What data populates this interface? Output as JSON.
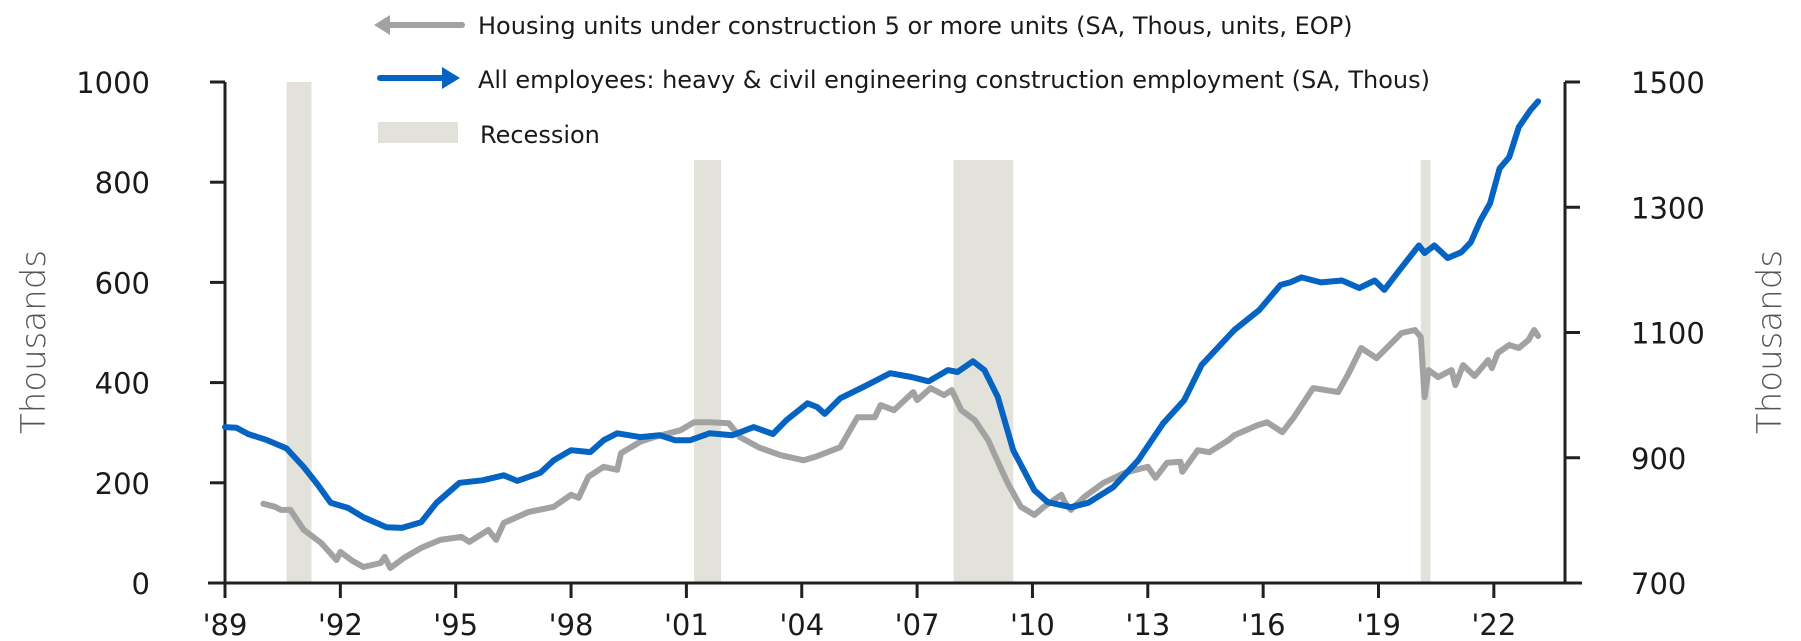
{
  "chart_data": {
    "type": "line",
    "title": "",
    "xlabel": "",
    "ylabel": "Thousands",
    "ylabel_right": "Thousands",
    "xlim": [
      1989,
      2024.2
    ],
    "ylim": [
      0,
      1000
    ],
    "ylim_right": [
      700,
      1500
    ],
    "x_ticks": [
      1989,
      1992,
      1995,
      1998,
      2001,
      2004,
      2007,
      2010,
      2013,
      2016,
      2019,
      2022
    ],
    "x_tick_labels": [
      "'89",
      "'92",
      "'95",
      "'98",
      "'01",
      "'04",
      "'07",
      "'10",
      "'13",
      "'16",
      "'19",
      "'22"
    ],
    "y_ticks": [
      0,
      200,
      400,
      600,
      800,
      1000
    ],
    "y_tick_labels": [
      "0",
      "200",
      "400",
      "600",
      "800",
      "1000"
    ],
    "y_ticks_right": [
      700,
      900,
      1100,
      1300,
      1500
    ],
    "y_tick_labels_right": [
      "700",
      "900",
      "1100",
      "1300",
      "1500"
    ],
    "grid": false,
    "legend_position": "top",
    "legend": [
      {
        "label": "Housing units under construction 5 or more units (SA, Thous, units, EOP)",
        "kind": "arrow-left",
        "color": "#A2A2A2"
      },
      {
        "label": "All employees: heavy & civil engineering construction employment (SA, Thous)",
        "kind": "arrow-right",
        "color": "#0563C1"
      },
      {
        "label": "Recession",
        "kind": "swatch",
        "color": "#E2E2DA"
      }
    ],
    "recessions": [
      {
        "start": 1990.6,
        "end": 1991.25
      },
      {
        "start": 2001.2,
        "end": 2001.9
      },
      {
        "start": 2007.95,
        "end": 2009.5
      },
      {
        "start": 2020.1,
        "end": 2020.35
      }
    ],
    "series": [
      {
        "name": "Housing units under construction 5 or more units (SA, Thous, units, EOP)",
        "axis": "left",
        "color": "#A2A2A2",
        "x": [
          1990.0,
          1990.3,
          1990.45,
          1990.7,
          1991.05,
          1991.5,
          1991.9,
          1992.0,
          1992.3,
          1992.6,
          1993.05,
          1993.15,
          1993.3,
          1993.65,
          1994.1,
          1994.6,
          1995.15,
          1995.35,
          1995.85,
          1996.05,
          1996.25,
          1996.9,
          1997.55,
          1998.0,
          1998.2,
          1998.45,
          1998.85,
          1999.2,
          1999.3,
          1999.8,
          2000.2,
          2000.85,
          2001.2,
          2001.6,
          2002.1,
          2002.4,
          2002.9,
          2003.45,
          2004.05,
          2004.4,
          2005.0,
          2005.45,
          2005.9,
          2006.05,
          2006.4,
          2006.9,
          2007.0,
          2007.35,
          2007.7,
          2007.9,
          2008.15,
          2008.5,
          2008.85,
          2009.0,
          2009.35,
          2009.7,
          2010.05,
          2010.3,
          2010.75,
          2010.85,
          2011.0,
          2011.35,
          2011.85,
          2012.4,
          2013.0,
          2013.2,
          2013.5,
          2013.85,
          2013.9,
          2014.3,
          2014.6,
          2015.1,
          2015.25,
          2015.85,
          2016.1,
          2016.5,
          2016.8,
          2017.3,
          2017.95,
          2018.2,
          2018.55,
          2018.95,
          2019.6,
          2019.95,
          2020.1,
          2020.2,
          2020.3,
          2020.55,
          2020.9,
          2021.0,
          2021.2,
          2021.5,
          2021.85,
          2021.95,
          2022.1,
          2022.4,
          2022.65,
          2022.9,
          2023.05,
          2023.15
        ],
        "values": [
          158,
          152,
          146,
          146,
          106,
          80,
          46,
          62,
          45,
          32,
          40,
          52,
          30,
          50,
          70,
          86,
          92,
          82,
          106,
          86,
          120,
          142,
          152,
          176,
          170,
          212,
          232,
          226,
          259,
          282,
          292,
          305,
          321,
          321,
          319,
          291,
          270,
          255,
          245,
          253,
          271,
          331,
          331,
          355,
          345,
          381,
          365,
          389,
          375,
          385,
          345,
          325,
          285,
          259,
          200,
          152,
          136,
          152,
          176,
          160,
          146,
          172,
          200,
          220,
          232,
          210,
          240,
          242,
          222,
          265,
          261,
          285,
          295,
          315,
          321,
          301,
          331,
          389,
          381,
          415,
          469,
          449,
          499,
          505,
          491,
          371,
          425,
          411,
          425,
          395,
          435,
          413,
          445,
          429,
          459,
          475,
          469,
          485,
          505,
          493
        ]
      },
      {
        "name": "All employees: heavy & civil engineering construction employment (SA, Thous)",
        "axis": "right",
        "color": "#0563C1",
        "x": [
          1989.0,
          1989.3,
          1989.6,
          1990.1,
          1990.6,
          1991.05,
          1991.4,
          1991.75,
          1992.2,
          1992.6,
          1993.2,
          1993.6,
          1994.1,
          1994.5,
          1995.1,
          1995.7,
          1996.25,
          1996.6,
          1997.2,
          1997.55,
          1998.0,
          1998.5,
          1998.85,
          1999.2,
          1999.8,
          2000.3,
          2000.7,
          2001.1,
          2001.6,
          2002.2,
          2002.75,
          2003.25,
          2003.6,
          2004.15,
          2004.4,
          2004.6,
          2005.0,
          2005.6,
          2006.3,
          2006.85,
          2007.3,
          2007.8,
          2008.05,
          2008.45,
          2008.75,
          2009.1,
          2009.5,
          2010.05,
          2010.4,
          2011.0,
          2011.45,
          2012.1,
          2012.75,
          2013.4,
          2013.95,
          2014.4,
          2015.25,
          2015.9,
          2016.45,
          2016.7,
          2017.0,
          2017.5,
          2018.05,
          2018.5,
          2018.9,
          2019.15,
          2019.6,
          2020.05,
          2020.2,
          2020.45,
          2020.8,
          2021.15,
          2021.4,
          2021.65,
          2021.9,
          2022.15,
          2022.4,
          2022.65,
          2022.95,
          2023.15
        ],
        "values": [
          949,
          948,
          938,
          928,
          915,
          885,
          858,
          828,
          820,
          805,
          789,
          788,
          797,
          828,
          860,
          864,
          872,
          863,
          876,
          896,
          912,
          909,
          928,
          939,
          933,
          936,
          928,
          928,
          939,
          936,
          949,
          938,
          960,
          987,
          981,
          970,
          995,
          1013,
          1035,
          1029,
          1022,
          1040,
          1037,
          1054,
          1040,
          997,
          912,
          848,
          829,
          821,
          828,
          853,
          896,
          955,
          992,
          1048,
          1104,
          1136,
          1176,
          1180,
          1188,
          1180,
          1183,
          1171,
          1183,
          1168,
          1204,
          1239,
          1227,
          1239,
          1219,
          1228,
          1244,
          1279,
          1306,
          1362,
          1380,
          1428,
          1455,
          1469
        ]
      }
    ]
  }
}
